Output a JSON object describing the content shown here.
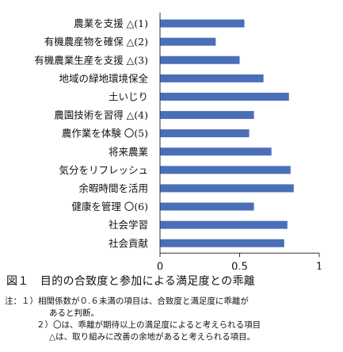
{
  "chart_data": {
    "type": "bar",
    "orientation": "horizontal",
    "categories": [
      "農業を支援 △(1)",
      "有機農産物を確保 △(2)",
      "有機農業生産を支援 △(3)",
      "地域の緑地環境保全",
      "土いじり",
      "農園技術を習得 △(4)",
      "農作業を体験 〇(5)",
      "将来農業",
      "気分をリフレッシュ",
      "余暇時間を活用",
      "健康を管理 〇(6)",
      "社会学習",
      "社会貢献"
    ],
    "values": [
      0.53,
      0.35,
      0.5,
      0.65,
      0.81,
      0.59,
      0.56,
      0.7,
      0.82,
      0.84,
      0.59,
      0.8,
      0.78
    ],
    "xlim": [
      0,
      1
    ],
    "xticks": [
      "0",
      "0.5",
      "1"
    ],
    "bar_color": "#4a6fb8",
    "grid": false
  },
  "caption": {
    "figure": "図１　目的の合致度と参加による満足度との乖離",
    "note1_line1": "注：１）相関係数が０.６未満の項目は、合致度と満足度に乖離が",
    "note1_line2": "あると判断。",
    "note2_line1": "２）〇は、乖離が期待以上の満足度によると考えられる項目",
    "note2_line2": "△は、取り組みに改善の余地があると考えられる項目。"
  }
}
